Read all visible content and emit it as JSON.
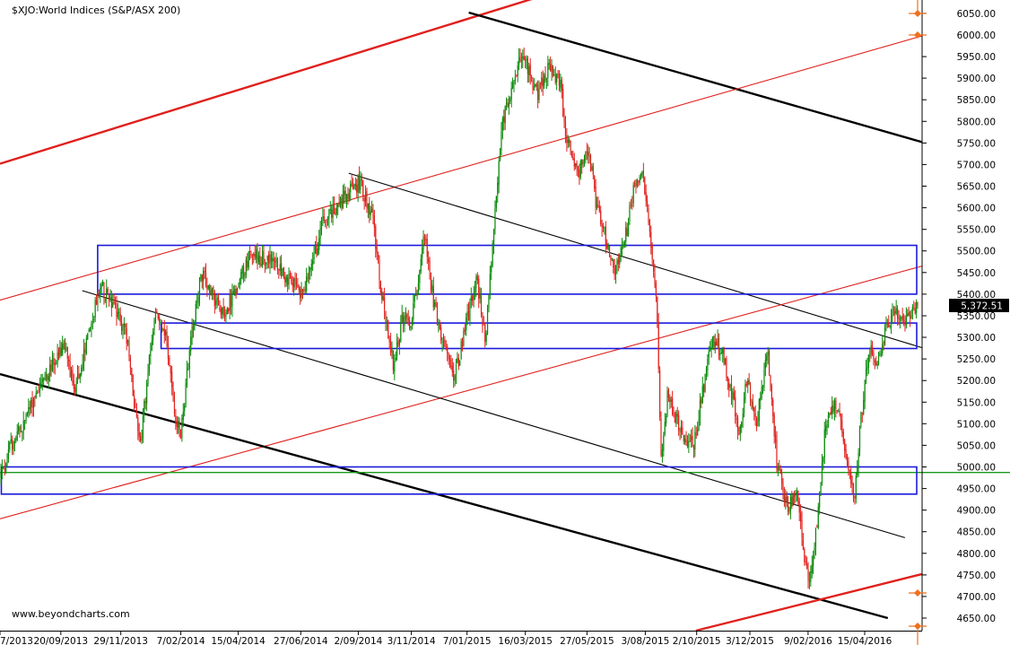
{
  "chart_data": {
    "type": "candlestick",
    "title": "$XJO:World Indices (S&P/ASX 200)",
    "watermark": "www.beyondcharts.com",
    "last_price": 5372.51,
    "last_price_label": "5,372.51",
    "y_axis": {
      "position": "right",
      "ylim": [
        4630,
        6080
      ],
      "ticks": [
        6050,
        6000,
        5950,
        5900,
        5850,
        5800,
        5750,
        5700,
        5650,
        5600,
        5550,
        5500,
        5450,
        5400,
        5350,
        5300,
        5250,
        5200,
        5150,
        5100,
        5050,
        5000,
        4950,
        4900,
        4850,
        4800,
        4750,
        4700,
        4650
      ],
      "tick_labels": [
        "6050.00",
        "6000.00",
        "5950.00",
        "5900.00",
        "5850.00",
        "5800.00",
        "5750.00",
        "5700.00",
        "5650.00",
        "5600.00",
        "5550.00",
        "5500.00",
        "5450.00",
        "5400.00",
        "5350.00",
        "5300.00",
        "5250.00",
        "5200.00",
        "5150.00",
        "5100.00",
        "5050.00",
        "5000.00",
        "4950.00",
        "4900.00",
        "4850.00",
        "4800.00",
        "4750.00",
        "4700.00",
        "4650.00"
      ]
    },
    "x_axis": {
      "range": [
        "2013-07-11",
        "2016-06-21"
      ],
      "ticks": [
        "2013-07-11",
        "2013-09-20",
        "2013-11-29",
        "2014-02-07",
        "2014-04-15",
        "2014-06-27",
        "2014-09-02",
        "2014-11-03",
        "2015-01-07",
        "2015-03-16",
        "2015-05-27",
        "2015-08-03",
        "2015-10-02",
        "2015-12-03",
        "2016-02-09",
        "2016-04-15"
      ],
      "tick_labels": [
        "7/2013",
        "20/09/2013",
        "29/11/2013",
        "7/02/2014",
        "15/04/2014",
        "27/06/2014",
        "2/09/2014",
        "3/11/2014",
        "7/01/2015",
        "16/03/2015",
        "27/05/2015",
        "3/08/2015",
        "2/10/2015",
        "3/12/2015",
        "9/02/2016",
        "15/04/2016"
      ]
    },
    "price_path": [
      [
        "2013-07-11",
        4980
      ],
      [
        "2013-07-25",
        5060
      ],
      [
        "2013-08-05",
        5090
      ],
      [
        "2013-08-20",
        5170
      ],
      [
        "2013-09-05",
        5220
      ],
      [
        "2013-09-25",
        5280
      ],
      [
        "2013-10-05",
        5170
      ],
      [
        "2013-10-20",
        5290
      ],
      [
        "2013-11-05",
        5420
      ],
      [
        "2013-11-20",
        5370
      ],
      [
        "2013-12-05",
        5310
      ],
      [
        "2013-12-15",
        5140
      ],
      [
        "2013-12-22",
        5060
      ],
      [
        "2014-01-08",
        5360
      ],
      [
        "2014-01-20",
        5310
      ],
      [
        "2014-02-01",
        5110
      ],
      [
        "2014-02-07",
        5080
      ],
      [
        "2014-02-20",
        5310
      ],
      [
        "2014-03-03",
        5450
      ],
      [
        "2014-03-20",
        5380
      ],
      [
        "2014-04-01",
        5360
      ],
      [
        "2014-04-15",
        5420
      ],
      [
        "2014-05-01",
        5500
      ],
      [
        "2014-05-15",
        5480
      ],
      [
        "2014-06-01",
        5470
      ],
      [
        "2014-06-15",
        5430
      ],
      [
        "2014-06-27",
        5400
      ],
      [
        "2014-07-10",
        5460
      ],
      [
        "2014-07-25",
        5580
      ],
      [
        "2014-08-10",
        5600
      ],
      [
        "2014-08-25",
        5640
      ],
      [
        "2014-09-05",
        5660
      ],
      [
        "2014-09-20",
        5580
      ],
      [
        "2014-10-01",
        5400
      ],
      [
        "2014-10-15",
        5230
      ],
      [
        "2014-10-25",
        5340
      ],
      [
        "2014-11-05",
        5330
      ],
      [
        "2014-11-20",
        5540
      ],
      [
        "2014-12-01",
        5380
      ],
      [
        "2014-12-15",
        5260
      ],
      [
        "2014-12-25",
        5200
      ],
      [
        "2015-01-07",
        5320
      ],
      [
        "2015-01-20",
        5440
      ],
      [
        "2015-01-31",
        5290
      ],
      [
        "2015-02-10",
        5560
      ],
      [
        "2015-02-20",
        5800
      ],
      [
        "2015-03-01",
        5870
      ],
      [
        "2015-03-16",
        5960
      ],
      [
        "2015-04-01",
        5860
      ],
      [
        "2015-04-15",
        5920
      ],
      [
        "2015-04-28",
        5900
      ],
      [
        "2015-05-05",
        5770
      ],
      [
        "2015-05-20",
        5680
      ],
      [
        "2015-06-01",
        5740
      ],
      [
        "2015-06-10",
        5600
      ],
      [
        "2015-06-22",
        5520
      ],
      [
        "2015-07-02",
        5450
      ],
      [
        "2015-07-15",
        5540
      ],
      [
        "2015-07-25",
        5660
      ],
      [
        "2015-08-03",
        5700
      ],
      [
        "2015-08-12",
        5520
      ],
      [
        "2015-08-20",
        5380
      ],
      [
        "2015-08-25",
        5020
      ],
      [
        "2015-09-01",
        5160
      ],
      [
        "2015-09-15",
        5100
      ],
      [
        "2015-09-25",
        5060
      ],
      [
        "2015-10-02",
        5050
      ],
      [
        "2015-10-15",
        5200
      ],
      [
        "2015-10-25",
        5300
      ],
      [
        "2015-11-05",
        5260
      ],
      [
        "2015-11-15",
        5180
      ],
      [
        "2015-11-25",
        5080
      ],
      [
        "2015-12-03",
        5200
      ],
      [
        "2015-12-15",
        5100
      ],
      [
        "2015-12-28",
        5280
      ],
      [
        "2016-01-08",
        5000
      ],
      [
        "2016-01-20",
        4900
      ],
      [
        "2016-02-01",
        4950
      ],
      [
        "2016-02-09",
        4800
      ],
      [
        "2016-02-15",
        4740
      ],
      [
        "2016-02-25",
        4890
      ],
      [
        "2016-03-05",
        5100
      ],
      [
        "2016-03-15",
        5150
      ],
      [
        "2016-03-25",
        5080
      ],
      [
        "2016-04-01",
        5000
      ],
      [
        "2016-04-08",
        4930
      ],
      [
        "2016-04-15",
        5100
      ],
      [
        "2016-04-25",
        5270
      ],
      [
        "2016-05-05",
        5250
      ],
      [
        "2016-05-15",
        5320
      ],
      [
        "2016-05-25",
        5370
      ],
      [
        "2016-06-05",
        5330
      ],
      [
        "2016-06-21",
        5372.51
      ]
    ],
    "trendlines": [
      {
        "color": "#e0201c",
        "weight": "thick",
        "from": [
          "2013-07-11",
          5702
        ],
        "to": [
          "2015-03-28",
          6086
        ]
      },
      {
        "color": "#000000",
        "weight": "thick",
        "from": [
          "2015-01-09",
          6052
        ],
        "to": [
          "2016-06-21",
          5752
        ]
      },
      {
        "color": "#e0201c",
        "weight": "thin",
        "from": [
          "2013-07-11",
          5386
        ],
        "to": [
          "2016-06-21",
          5998
        ]
      },
      {
        "color": "#000000",
        "weight": "thin",
        "from": [
          "2014-08-22",
          5680
        ],
        "to": [
          "2016-06-21",
          5276
        ]
      },
      {
        "color": "#e0201c",
        "weight": "thin",
        "from": [
          "2013-07-11",
          4880
        ],
        "to": [
          "2016-06-21",
          5465
        ]
      },
      {
        "color": "#000000",
        "weight": "thin",
        "from": [
          "2013-10-15",
          5408
        ],
        "to": [
          "2016-06-01",
          4836
        ]
      },
      {
        "color": "#000000",
        "weight": "thick",
        "from": [
          "2013-07-11",
          5215
        ],
        "to": [
          "2016-05-12",
          4650
        ]
      },
      {
        "color": "#e0201c",
        "weight": "thick",
        "from": [
          "2015-10-01",
          4621
        ],
        "to": [
          "2016-06-21",
          4752
        ]
      }
    ],
    "zones": [
      {
        "color": "#1a1adc",
        "from_date": "2013-11-02",
        "to_date": "2016-06-21",
        "low": 5400,
        "high": 5513
      },
      {
        "color": "#1a1adc",
        "from_date": "2014-01-15",
        "to_date": "2016-06-21",
        "low": 5274,
        "high": 5333
      },
      {
        "color": "#1a1adc",
        "from_date": "2013-07-11",
        "to_date": "2016-06-21",
        "low": 4937,
        "high": 5000
      }
    ],
    "horizontal_line": {
      "color": "#1a9a1a",
      "value": 4987
    },
    "grid": false
  }
}
